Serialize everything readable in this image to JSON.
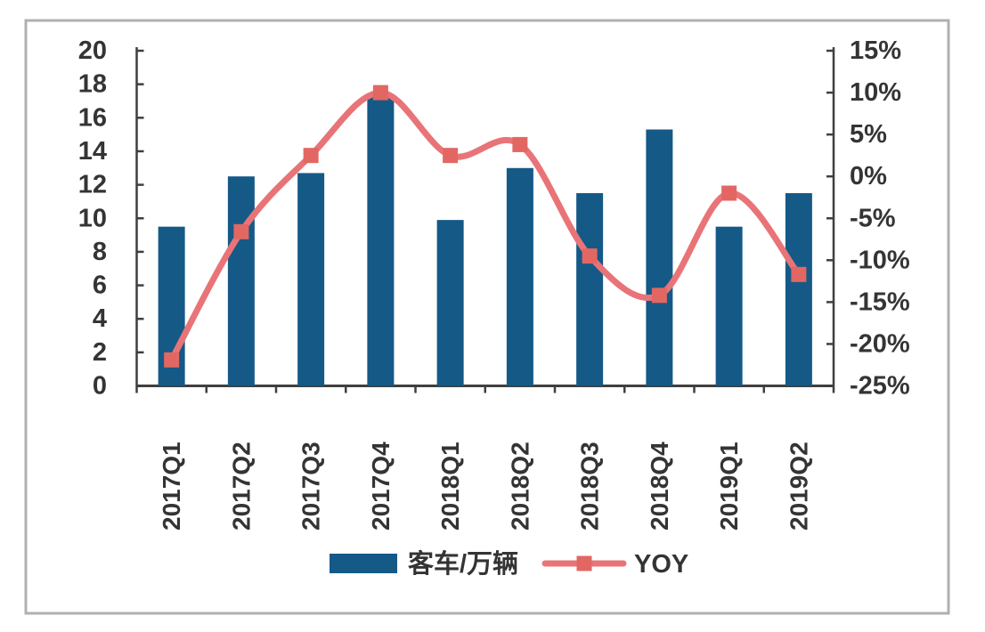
{
  "chart_data": {
    "type": "bar",
    "subtype": "combo-bar-line-dual-axis",
    "title": "",
    "xlabel": "",
    "ylabel_left": "",
    "ylabel_right": "",
    "categories": [
      "2017Q1",
      "2017Q2",
      "2017Q3",
      "2017Q4",
      "2018Q1",
      "2018Q2",
      "2018Q3",
      "2018Q4",
      "2019Q1",
      "2019Q2"
    ],
    "series": [
      {
        "name": "客车/万辆",
        "type": "bar",
        "axis": "left",
        "values": [
          9.5,
          12.5,
          12.7,
          17.4,
          9.9,
          13.0,
          11.5,
          15.3,
          9.5,
          11.5
        ]
      },
      {
        "name": "YOY",
        "type": "line",
        "axis": "right",
        "values_percent": [
          -21.9,
          -6.6,
          2.5,
          10.0,
          2.5,
          3.8,
          -9.5,
          -14.2,
          -2.0,
          -11.7
        ]
      }
    ],
    "left_axis": {
      "min": 0,
      "max": 20,
      "tick_labels": [
        "20",
        "18",
        "16",
        "14",
        "12",
        "10",
        "8",
        "6",
        "4",
        "2",
        "0"
      ]
    },
    "right_axis": {
      "min_percent": -25,
      "max_percent": 15,
      "tick_labels": [
        "15%",
        "10%",
        "5%",
        "0%",
        "-5%",
        "-10%",
        "-15%",
        "-20%",
        "-25%"
      ]
    },
    "grid": false,
    "legend": {
      "position": "bottom",
      "entries": [
        "客车/万辆",
        "YOY"
      ]
    }
  },
  "colors": {
    "bar": "#155987",
    "line": "#E87478",
    "marker_fill": "#E26763",
    "axis_line": "#3f3f3f",
    "tick_text": "#343434",
    "frame_border": "#b0b0b0",
    "background": "#ffffff"
  }
}
